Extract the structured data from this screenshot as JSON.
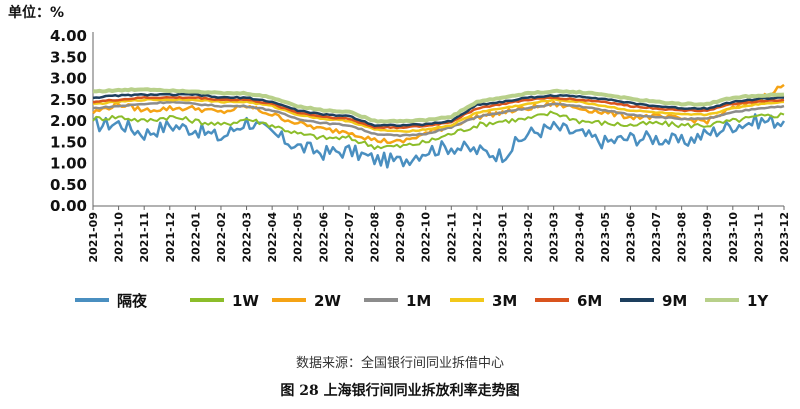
{
  "chart_data": {
    "type": "line",
    "unit_label": "单位：%",
    "ylim": [
      0,
      4
    ],
    "y_ticks": [
      "4.00",
      "3.50",
      "3.00",
      "2.50",
      "2.00",
      "1.50",
      "1.00",
      "0.50",
      "0.00"
    ],
    "categories": [
      "2021-09",
      "2021-10",
      "2021-11",
      "2021-12",
      "2022-01",
      "2022-02",
      "2022-03",
      "2022-04",
      "2022-05",
      "2022-06",
      "2022-07",
      "2022-08",
      "2022-09",
      "2022-10",
      "2022-11",
      "2022-12",
      "2023-01",
      "2023-02",
      "2023-03",
      "2023-04",
      "2023-05",
      "2023-06",
      "2023-07",
      "2023-08",
      "2023-09",
      "2023-10",
      "2023-11",
      "2023-12"
    ],
    "grid": false,
    "legend_position": "bottom",
    "series": [
      {
        "name": "隔夜",
        "color": "#4a8fc0",
        "width": 2.5,
        "values": [
          1.9,
          1.95,
          1.7,
          1.9,
          1.8,
          1.6,
          2.0,
          1.7,
          1.4,
          1.25,
          1.3,
          1.1,
          1.05,
          1.3,
          1.4,
          1.3,
          1.2,
          1.7,
          1.85,
          1.7,
          1.5,
          1.6,
          1.6,
          1.5,
          1.7,
          1.9,
          2.0,
          2.0
        ]
      },
      {
        "name": "1W",
        "color": "#8cbd2a",
        "width": 2,
        "values": [
          2.05,
          2.1,
          2.0,
          2.1,
          2.0,
          1.9,
          2.05,
          1.9,
          1.7,
          1.6,
          1.6,
          1.4,
          1.4,
          1.5,
          1.7,
          1.9,
          2.0,
          2.05,
          2.2,
          2.0,
          1.95,
          1.9,
          1.95,
          1.9,
          1.9,
          2.0,
          2.1,
          2.15
        ]
      },
      {
        "name": "2W",
        "color": "#f5a315",
        "width": 2.5,
        "values": [
          2.2,
          2.4,
          2.25,
          2.3,
          2.3,
          2.2,
          2.35,
          2.15,
          1.95,
          1.8,
          1.75,
          1.55,
          1.5,
          1.7,
          1.9,
          2.1,
          2.2,
          2.3,
          2.4,
          2.3,
          2.2,
          2.1,
          2.1,
          2.05,
          2.0,
          2.3,
          2.5,
          2.85
        ]
      },
      {
        "name": "1M",
        "color": "#8c8c8c",
        "width": 2.5,
        "values": [
          2.3,
          2.35,
          2.4,
          2.45,
          2.4,
          2.35,
          2.35,
          2.25,
          2.05,
          1.95,
          1.9,
          1.7,
          1.65,
          1.7,
          1.85,
          2.1,
          2.2,
          2.3,
          2.4,
          2.35,
          2.25,
          2.15,
          2.1,
          2.05,
          2.05,
          2.2,
          2.3,
          2.35
        ]
      },
      {
        "name": "3M",
        "color": "#f2c81a",
        "width": 2.5,
        "values": [
          2.4,
          2.45,
          2.5,
          2.5,
          2.5,
          2.45,
          2.45,
          2.35,
          2.15,
          2.05,
          2.0,
          1.8,
          1.75,
          1.8,
          1.9,
          2.2,
          2.3,
          2.4,
          2.5,
          2.45,
          2.35,
          2.25,
          2.2,
          2.15,
          2.15,
          2.3,
          2.4,
          2.45
        ]
      },
      {
        "name": "6M",
        "color": "#d9541e",
        "width": 2.5,
        "values": [
          2.45,
          2.5,
          2.55,
          2.55,
          2.55,
          2.5,
          2.5,
          2.4,
          2.2,
          2.1,
          2.05,
          1.85,
          1.85,
          1.88,
          1.98,
          2.3,
          2.4,
          2.5,
          2.55,
          2.5,
          2.45,
          2.35,
          2.3,
          2.25,
          2.25,
          2.4,
          2.45,
          2.5
        ]
      },
      {
        "name": "9M",
        "color": "#1d3f5e",
        "width": 2.5,
        "values": [
          2.55,
          2.6,
          2.62,
          2.62,
          2.62,
          2.55,
          2.55,
          2.45,
          2.25,
          2.15,
          2.12,
          1.9,
          1.9,
          1.92,
          2.0,
          2.38,
          2.45,
          2.55,
          2.6,
          2.58,
          2.52,
          2.42,
          2.35,
          2.3,
          2.3,
          2.45,
          2.52,
          2.55
        ]
      },
      {
        "name": "1Y",
        "color": "#b8d08a",
        "width": 4,
        "values": [
          2.7,
          2.72,
          2.75,
          2.72,
          2.7,
          2.65,
          2.65,
          2.55,
          2.35,
          2.25,
          2.22,
          2.0,
          2.0,
          2.02,
          2.1,
          2.45,
          2.55,
          2.65,
          2.7,
          2.68,
          2.62,
          2.52,
          2.45,
          2.4,
          2.4,
          2.55,
          2.6,
          2.62
        ]
      }
    ]
  },
  "footer": {
    "source": "数据来源：全国银行间同业拆借中心",
    "caption": "图 28    上海银行间同业拆放利率走势图"
  }
}
